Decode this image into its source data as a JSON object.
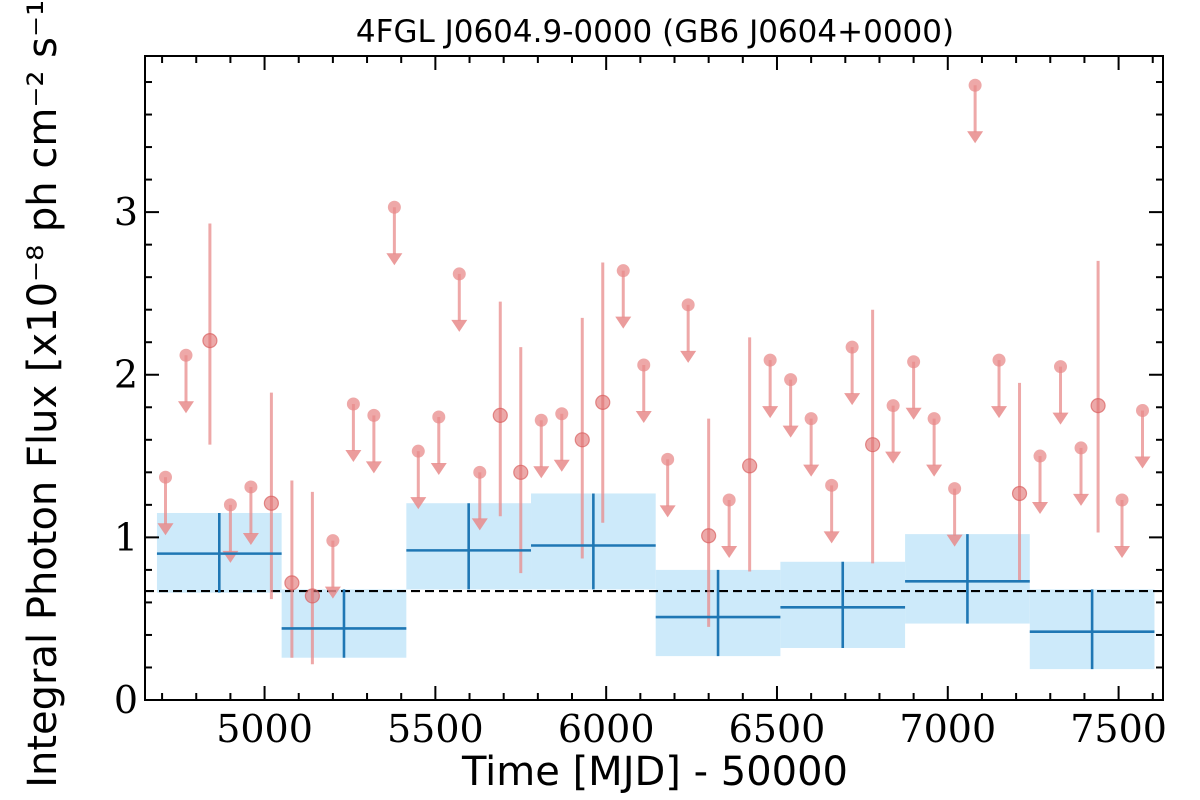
{
  "chart_data": {
    "type": "scatter",
    "title": "4FGL J0604.9-0000 (GB6 J0604+0000)",
    "xlabel": "Time [MJD] - 50000",
    "ylabel": "Integral Photon Flux [x10⁻⁸ ph cm⁻² s⁻¹]",
    "xlim": [
      4650,
      7630
    ],
    "ylim": [
      0,
      3.96
    ],
    "xticks": [
      5000,
      5500,
      6000,
      6500,
      7000,
      7500
    ],
    "xtick_labels": [
      "5000",
      "5500",
      "6000",
      "6500",
      "7000",
      "7500"
    ],
    "yticks": [
      0,
      1,
      2,
      3
    ],
    "ytick_labels": [
      "0",
      "1",
      "2",
      "3"
    ],
    "grid": false,
    "legend": "none",
    "colors": {
      "monthly": "#e88b8b",
      "yearly_line": "#1f77b4",
      "yearly_band": "#cdeafa",
      "baseline": "#000000"
    },
    "baseline_flux": 0.67,
    "series": [
      {
        "points": [
          {
            "x": 4840,
            "y": 2.21,
            "ylo": 1.57,
            "yhi": 2.93
          },
          {
            "x": 5020,
            "y": 1.21,
            "ylo": 0.62,
            "yhi": 1.89
          },
          {
            "x": 5080,
            "y": 0.72,
            "ylo": 0.26,
            "yhi": 1.35
          },
          {
            "x": 5140,
            "y": 0.64,
            "ylo": 0.22,
            "yhi": 1.28
          },
          {
            "x": 5690,
            "y": 1.75,
            "ylo": 1.13,
            "yhi": 2.45
          },
          {
            "x": 5750,
            "y": 1.4,
            "ylo": 0.78,
            "yhi": 2.17
          },
          {
            "x": 5930,
            "y": 1.6,
            "ylo": 0.87,
            "yhi": 2.35
          },
          {
            "x": 5990,
            "y": 1.83,
            "ylo": 1.09,
            "yhi": 2.69
          },
          {
            "x": 6300,
            "y": 1.01,
            "ylo": 0.45,
            "yhi": 1.73
          },
          {
            "x": 6420,
            "y": 1.44,
            "ylo": 0.79,
            "yhi": 2.23
          },
          {
            "x": 6780,
            "y": 1.57,
            "ylo": 0.84,
            "yhi": 2.4
          },
          {
            "x": 7210,
            "y": 1.27,
            "ylo": 0.73,
            "yhi": 1.95
          },
          {
            "x": 7440,
            "y": 1.81,
            "ylo": 1.03,
            "yhi": 2.7
          }
        ]
      },
      {
        "upper_limits": [
          {
            "x": 4710,
            "y": 1.37
          },
          {
            "x": 4770,
            "y": 2.12
          },
          {
            "x": 4900,
            "y": 1.2
          },
          {
            "x": 4960,
            "y": 1.31
          },
          {
            "x": 5200,
            "y": 0.98
          },
          {
            "x": 5260,
            "y": 1.82
          },
          {
            "x": 5320,
            "y": 1.75
          },
          {
            "x": 5380,
            "y": 3.03
          },
          {
            "x": 5450,
            "y": 1.53
          },
          {
            "x": 5510,
            "y": 1.74
          },
          {
            "x": 5570,
            "y": 2.62
          },
          {
            "x": 5630,
            "y": 1.4
          },
          {
            "x": 5810,
            "y": 1.72
          },
          {
            "x": 5870,
            "y": 1.76
          },
          {
            "x": 6050,
            "y": 2.64
          },
          {
            "x": 6110,
            "y": 2.06
          },
          {
            "x": 6180,
            "y": 1.48
          },
          {
            "x": 6240,
            "y": 2.43
          },
          {
            "x": 6360,
            "y": 1.23
          },
          {
            "x": 6480,
            "y": 2.09
          },
          {
            "x": 6540,
            "y": 1.97
          },
          {
            "x": 6600,
            "y": 1.73
          },
          {
            "x": 6660,
            "y": 1.32
          },
          {
            "x": 6720,
            "y": 2.17
          },
          {
            "x": 6840,
            "y": 1.81
          },
          {
            "x": 6900,
            "y": 2.08
          },
          {
            "x": 6960,
            "y": 1.73
          },
          {
            "x": 7020,
            "y": 1.3
          },
          {
            "x": 7080,
            "y": 3.78
          },
          {
            "x": 7150,
            "y": 2.09
          },
          {
            "x": 7270,
            "y": 1.5
          },
          {
            "x": 7330,
            "y": 2.05
          },
          {
            "x": 7390,
            "y": 1.55
          },
          {
            "x": 7510,
            "y": 1.23
          },
          {
            "x": 7570,
            "y": 1.78
          }
        ]
      },
      {
        "bins": [
          {
            "x0": 4685,
            "x1": 5050,
            "y": 0.9,
            "ylo": 0.66,
            "yhi": 1.15
          },
          {
            "x0": 5050,
            "x1": 5415,
            "y": 0.44,
            "ylo": 0.26,
            "yhi": 0.68
          },
          {
            "x0": 5415,
            "x1": 5780,
            "y": 0.92,
            "ylo": 0.68,
            "yhi": 1.21
          },
          {
            "x0": 5780,
            "x1": 6145,
            "y": 0.95,
            "ylo": 0.68,
            "yhi": 1.27
          },
          {
            "x0": 6145,
            "x1": 6510,
            "y": 0.51,
            "ylo": 0.27,
            "yhi": 0.8
          },
          {
            "x0": 6510,
            "x1": 6875,
            "y": 0.57,
            "ylo": 0.32,
            "yhi": 0.85
          },
          {
            "x0": 6875,
            "x1": 7240,
            "y": 0.73,
            "ylo": 0.47,
            "yhi": 1.02
          },
          {
            "x0": 7240,
            "x1": 7605,
            "y": 0.42,
            "ylo": 0.19,
            "yhi": 0.68
          }
        ]
      }
    ]
  }
}
